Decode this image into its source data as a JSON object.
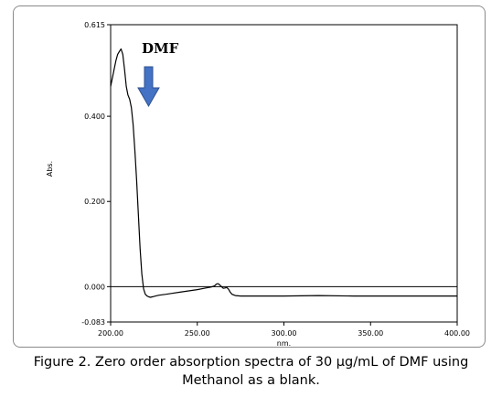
{
  "chart_data": {
    "type": "line",
    "title": "",
    "xlabel": "nm.",
    "ylabel": "Abs.",
    "xlim": [
      200,
      400
    ],
    "ylim": [
      -0.083,
      0.615
    ],
    "xticks": [
      "200.00",
      "250.00",
      "300.00",
      "350.00",
      "400.00"
    ],
    "xtick_values": [
      200,
      250,
      300,
      350,
      400
    ],
    "yticks": [
      "0.615",
      "0.400",
      "0.200",
      "0.000",
      "-0.083"
    ],
    "ytick_values": [
      0.615,
      0.4,
      0.2,
      0.0,
      -0.083
    ],
    "baseline": 0.0,
    "grid": false,
    "annotation": {
      "text": "DMF",
      "arrow": "down",
      "arrow_color": "#4472C4"
    },
    "series": [
      {
        "color": "#000000",
        "x": [
          200,
          201,
          202,
          203,
          204,
          205,
          206,
          207,
          208,
          209,
          210,
          211,
          212,
          213,
          214,
          215,
          216,
          217,
          218,
          219,
          220,
          221,
          222,
          223,
          224,
          225,
          226,
          227,
          228,
          230,
          232,
          235,
          240,
          245,
          250,
          255,
          258,
          260,
          261,
          262,
          263,
          264,
          265,
          266,
          267,
          268,
          269,
          270,
          272,
          275,
          280,
          300,
          320,
          340,
          360,
          380,
          400
        ],
        "y": [
          0.47,
          0.49,
          0.51,
          0.53,
          0.545,
          0.552,
          0.558,
          0.545,
          0.51,
          0.47,
          0.45,
          0.44,
          0.42,
          0.38,
          0.32,
          0.25,
          0.17,
          0.09,
          0.03,
          -0.005,
          -0.018,
          -0.022,
          -0.024,
          -0.025,
          -0.024,
          -0.023,
          -0.022,
          -0.021,
          -0.02,
          -0.019,
          -0.018,
          -0.016,
          -0.013,
          -0.01,
          -0.007,
          -0.003,
          -0.001,
          0.002,
          0.006,
          0.007,
          0.004,
          0.0,
          -0.004,
          -0.003,
          -0.002,
          -0.006,
          -0.013,
          -0.018,
          -0.021,
          -0.022,
          -0.022,
          -0.022,
          -0.021,
          -0.022,
          -0.022,
          -0.022,
          -0.022
        ]
      }
    ]
  },
  "caption": {
    "line1": "Figure 2. Zero order absorption spectra of 30 µg/mL of DMF using",
    "line2": "Methanol as a blank."
  }
}
